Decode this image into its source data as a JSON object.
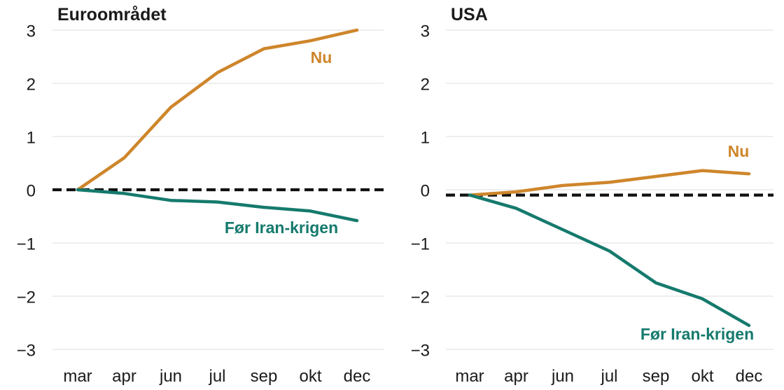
{
  "page": {
    "background": "#ffffff"
  },
  "styles": {
    "grid_color": "#e3e3e3",
    "dashed_line_color": "#111111",
    "text_color": "#1b1b1b",
    "nu_color": "#CE862B",
    "foer_color": "#157A6D"
  },
  "chart_data": [
    {
      "type": "line",
      "title": "Euroområdet",
      "categories": [
        "mar",
        "apr",
        "jun",
        "jul",
        "sep",
        "okt",
        "dec"
      ],
      "yticks": [
        3,
        2,
        1,
        0,
        -1,
        -2,
        -3
      ],
      "yticklabels": [
        "3",
        "2",
        "1",
        "0",
        "−1",
        "−2",
        "−3"
      ],
      "ylim": [
        -3,
        3
      ],
      "grid": "horizontal-light",
      "legend": "inline-labels",
      "baseline_dashed_at": 0,
      "series": [
        {
          "name": "Nu",
          "color": "#CE862B",
          "values": [
            0,
            0.6,
            1.55,
            2.2,
            2.65,
            2.8,
            3.0
          ]
        },
        {
          "name": "Før Iran-krigen",
          "color": "#157A6D",
          "values": [
            0,
            -0.07,
            -0.2,
            -0.23,
            -0.33,
            -0.4,
            -0.58
          ]
        }
      ]
    },
    {
      "type": "line",
      "title": "USA",
      "categories": [
        "mar",
        "apr",
        "jun",
        "jul",
        "sep",
        "okt",
        "dec"
      ],
      "yticks": [
        3,
        2,
        1,
        0,
        -1,
        -2,
        -3
      ],
      "yticklabels": [
        "3",
        "2",
        "1",
        "0",
        "−1",
        "−2",
        "−3"
      ],
      "ylim": [
        -3,
        3
      ],
      "grid": "horizontal-light",
      "legend": "inline-labels",
      "baseline_dashed_at": -0.1,
      "series": [
        {
          "name": "Nu",
          "color": "#CE862B",
          "values": [
            -0.1,
            -0.04,
            0.08,
            0.14,
            0.25,
            0.36,
            0.3
          ]
        },
        {
          "name": "Før Iran-krigen",
          "color": "#157A6D",
          "values": [
            -0.1,
            -0.35,
            -0.75,
            -1.15,
            -1.75,
            -2.05,
            -2.55
          ]
        }
      ]
    }
  ]
}
